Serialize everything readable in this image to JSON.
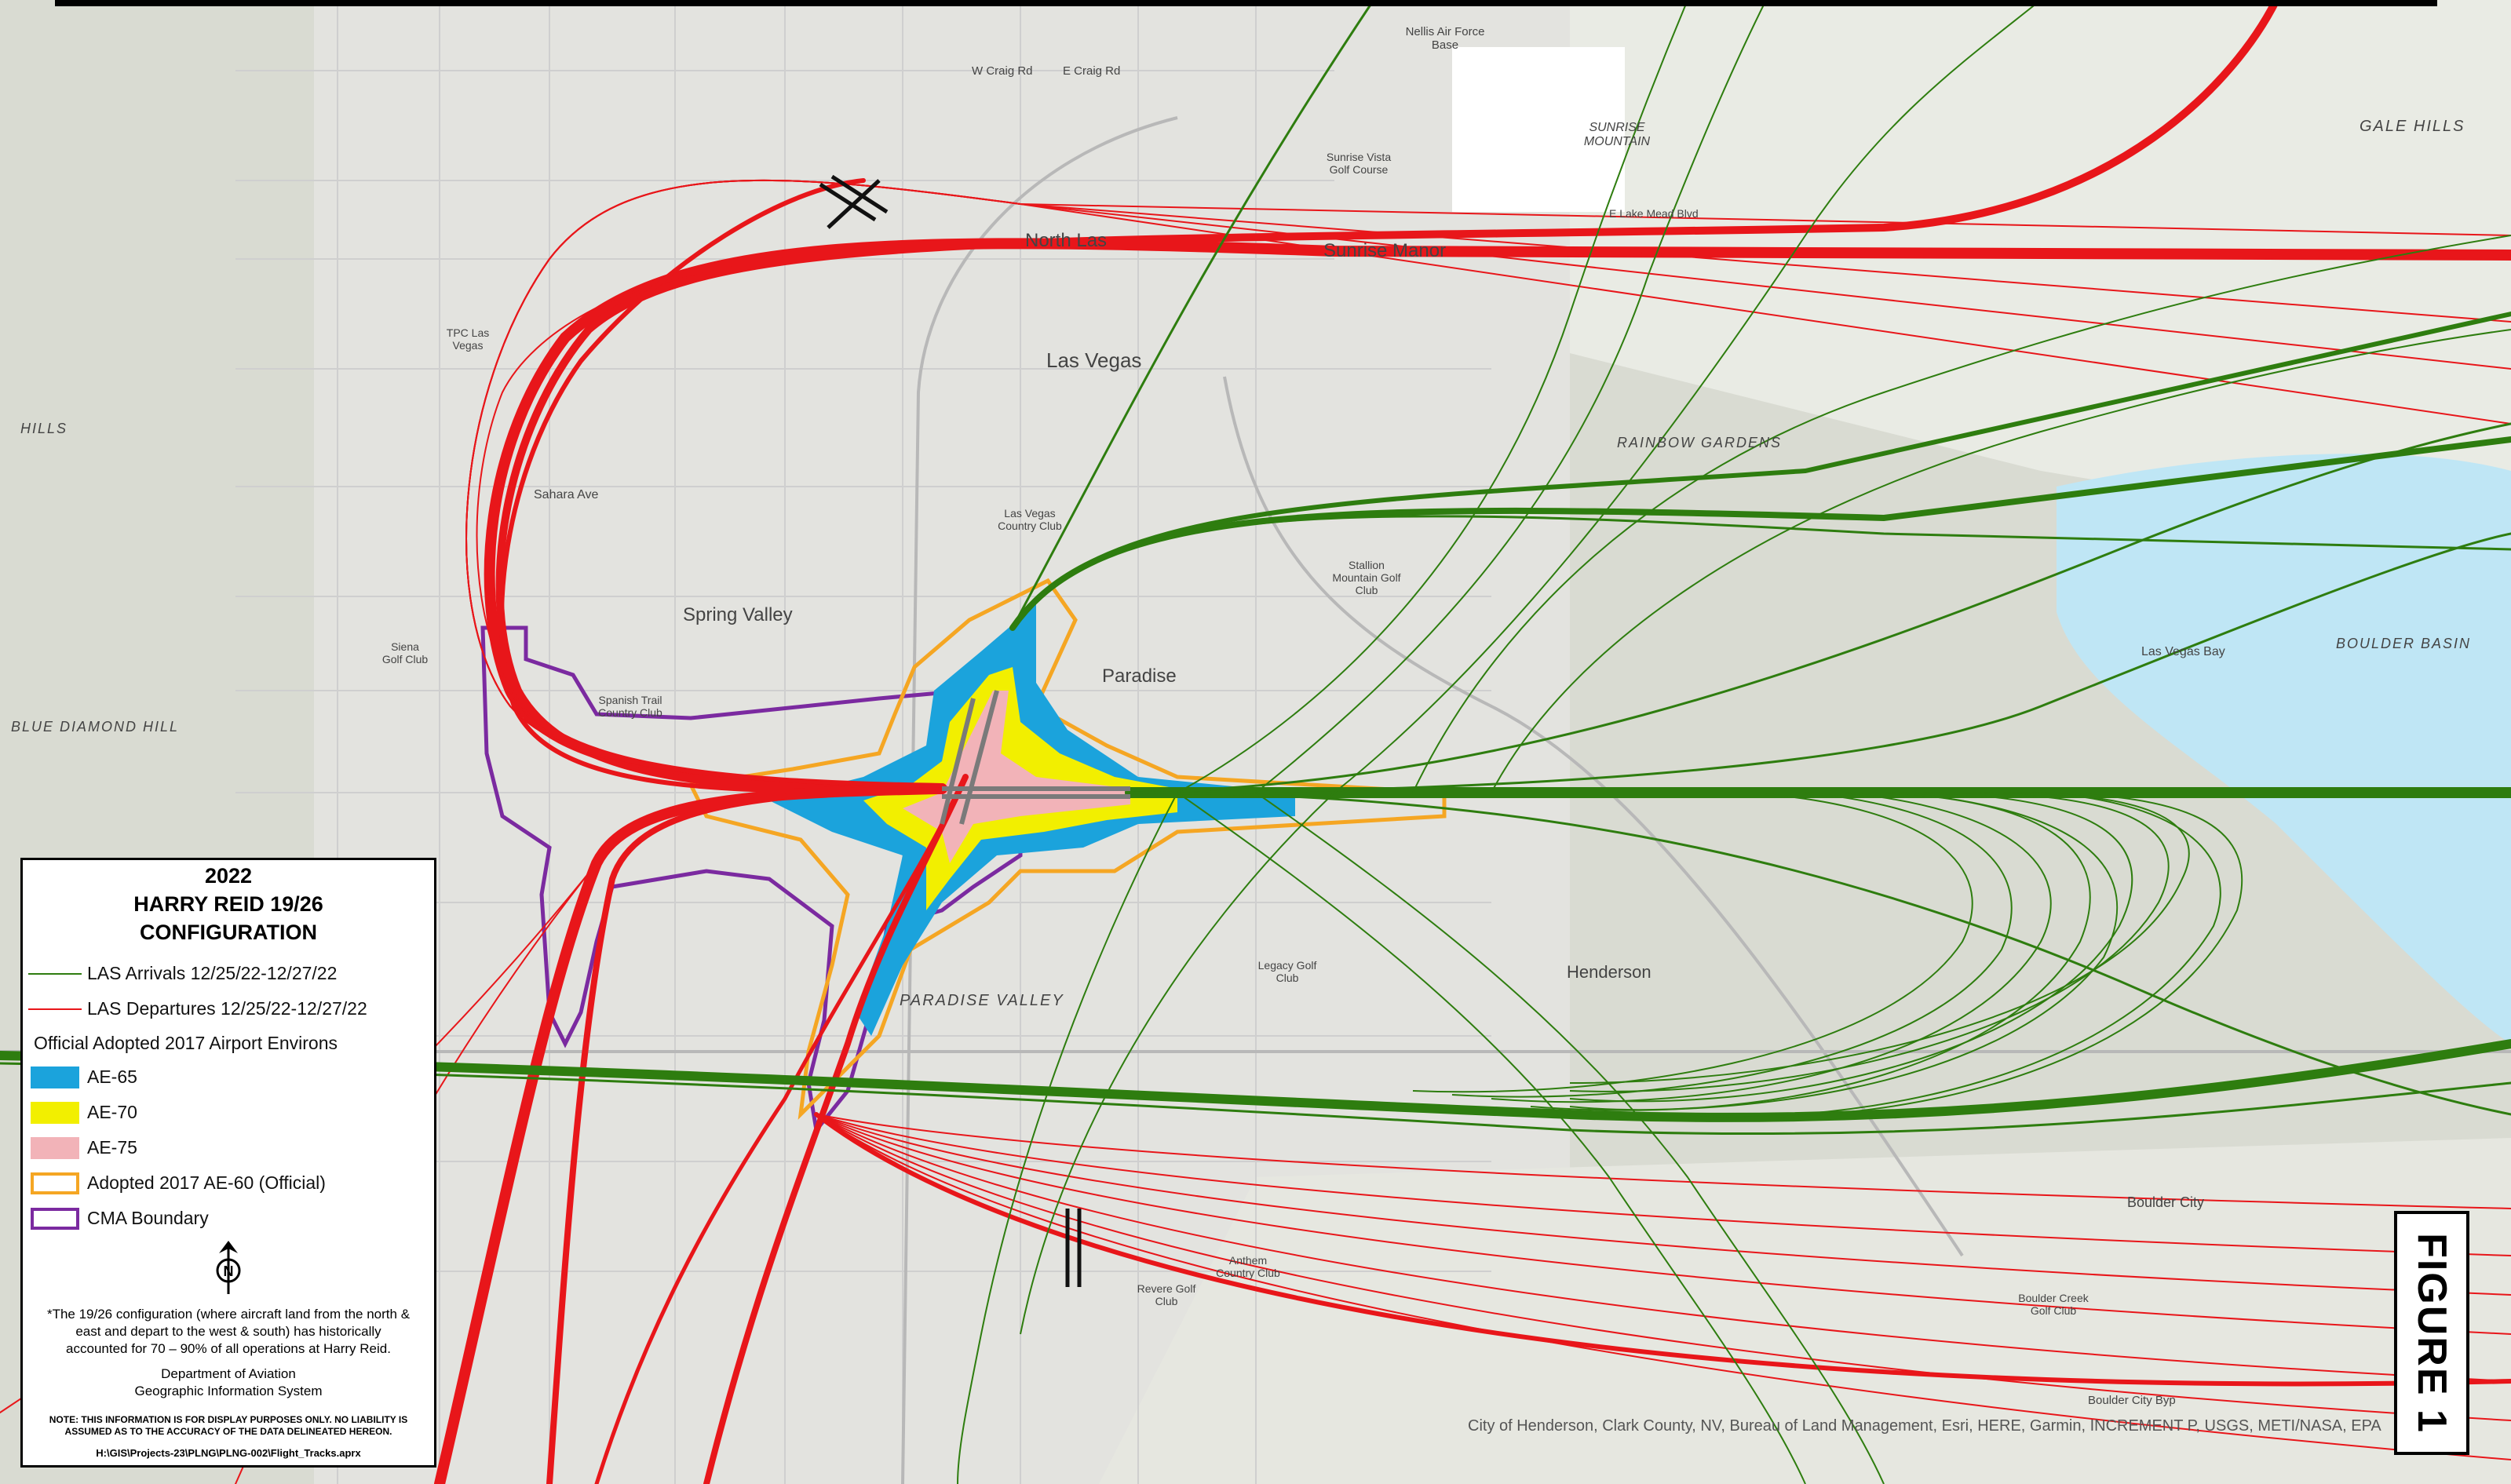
{
  "colors": {
    "arrivals": "#2e7d0f",
    "departures": "#e8161a",
    "ae65": "#1ba3dc",
    "ae70": "#f2ef00",
    "ae75": "#f2b3b8",
    "ae60": "#f5a623",
    "cma": "#7b2aa0",
    "water": "#bfe6f5"
  },
  "legend": {
    "year": "2022",
    "title_line1": "HARRY REID 19/26",
    "title_line2": "CONFIGURATION",
    "arrivals_label": "LAS Arrivals 12/25/22-12/27/22",
    "departures_label": "LAS Departures 12/25/22-12/27/22",
    "environs_heading": "Official Adopted 2017 Airport Environs",
    "ae65_label": "AE-65",
    "ae70_label": "AE-70",
    "ae75_label": "AE-75",
    "ae60_label": "Adopted 2017 AE-60 (Official)",
    "cma_label": "CMA Boundary",
    "north_letter": "N",
    "note": "*The 19/26 configuration (where aircraft land from the north & east and depart to the west & south) has historically accounted for 70 – 90% of all operations at Harry Reid.",
    "dept_line1": "Department of Aviation",
    "dept_line2": "Geographic Information System",
    "disclaimer": "NOTE: THIS INFORMATION IS FOR DISPLAY PURPOSES ONLY. NO LIABILITY IS ASSUMED AS TO THE ACCURACY OF THE DATA DELINEATED HEREON.",
    "file_path": "H:\\GIS\\Projects-23\\PLNG\\PLNG-002\\Flight_Tracks.aprx"
  },
  "figure_label": "FIGURE 1",
  "credits": "City of Henderson, Clark County, NV, Bureau of Land Management, Esri, HERE, Garmin, INCREMENT P, USGS, METI/NASA, EPA",
  "map_labels": {
    "north_las": "North Las",
    "sunrise_manor": "Sunrise Manor",
    "las_vegas": "Las Vegas",
    "spring_valley": "Spring Valley",
    "paradise": "Paradise",
    "paradise_valley": "PARADISE VALLEY",
    "henderson": "Henderson",
    "boulder_city": "Boulder City",
    "rainbow_gardens": "RAINBOW GARDENS",
    "sunrise_mountain": "SUNRISE MOUNTAIN",
    "gale_hills": "GALE HILLS",
    "blue_diamond_hill": "BLUE DIAMOND HILL",
    "boulder_basin": "BOULDER BASIN",
    "las_vegas_bay": "Las Vegas Bay",
    "nellis_afb": "Nellis Air Force Base",
    "w_craig_rd": "W Craig Rd",
    "e_craig_rd": "E Craig Rd",
    "sahara_ave": "Sahara Ave",
    "spanish_trail": "Spanish Trail Country Club",
    "legacy_golf": "Legacy Golf Club",
    "boulder_city_byp": "Boulder City Byp",
    "e_lake_mead": "E Lake Mead Blvd",
    "hills": "HILLS",
    "tpc_las_vegas": "TPC Las Vegas",
    "las_vegas_country_club": "Las Vegas Country Club",
    "stallion_mountain": "Stallion Mountain Golf Club",
    "anthem_cc": "Anthem Country Club",
    "revere_golf": "Revere Golf Club",
    "siena_golf": "Siena Golf Club",
    "sunrise_vista": "Sunrise Vista Golf Course",
    "boulder_creek": "Boulder Creek Golf Club"
  }
}
